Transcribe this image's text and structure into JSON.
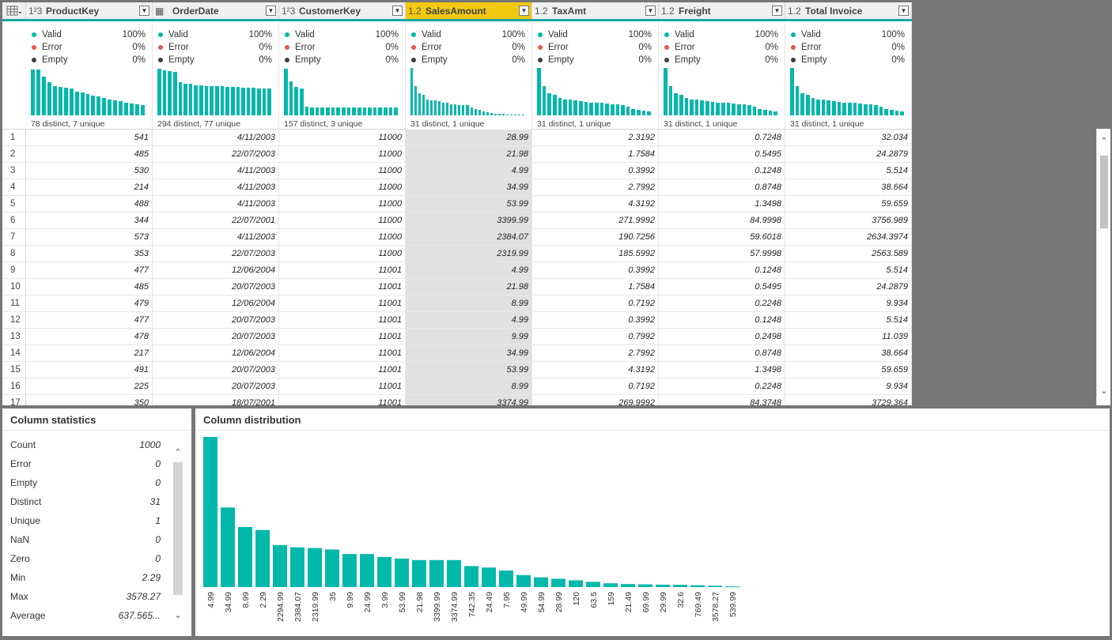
{
  "columns": [
    {
      "type": "1²3",
      "name": "ProductKey",
      "valid": "100%",
      "error": "0%",
      "empty": "0%",
      "distinct_text": "78 distinct, 7 unique",
      "profile": [
        0.97,
        0.97,
        0.82,
        0.7,
        0.62,
        0.6,
        0.58,
        0.56,
        0.5,
        0.48,
        0.45,
        0.42,
        0.4,
        0.36,
        0.34,
        0.32,
        0.3,
        0.27,
        0.25,
        0.23,
        0.22
      ],
      "selected": false
    },
    {
      "type": "▦",
      "name": "OrderDate",
      "valid": "100%",
      "error": "0%",
      "empty": "0%",
      "distinct_text": "294 distinct, 77 unique",
      "profile": [
        0.98,
        0.95,
        0.93,
        0.92,
        0.7,
        0.66,
        0.66,
        0.64,
        0.64,
        0.62,
        0.62,
        0.62,
        0.62,
        0.6,
        0.6,
        0.6,
        0.58,
        0.58,
        0.58,
        0.56,
        0.56,
        0.56
      ],
      "selected": false
    },
    {
      "type": "1²3",
      "name": "CustomerKey",
      "valid": "100%",
      "error": "0%",
      "empty": "0%",
      "distinct_text": "157 distinct, 3 unique",
      "profile": [
        0.98,
        0.72,
        0.6,
        0.56,
        0.18,
        0.16,
        0.16,
        0.16,
        0.16,
        0.16,
        0.16,
        0.16,
        0.16,
        0.16,
        0.16,
        0.16,
        0.16,
        0.16,
        0.16,
        0.16,
        0.16,
        0.16
      ],
      "selected": false
    },
    {
      "type": "1.2",
      "name": "SalesAmount",
      "valid": "100%",
      "error": "0%",
      "empty": "0%",
      "distinct_text": "31 distinct, 1 unique",
      "profile": [
        1.0,
        0.62,
        0.47,
        0.44,
        0.34,
        0.32,
        0.31,
        0.3,
        0.27,
        0.27,
        0.24,
        0.23,
        0.22,
        0.22,
        0.22,
        0.16,
        0.14,
        0.12,
        0.09,
        0.06,
        0.05,
        0.04,
        0.03,
        0.03,
        0.02,
        0.02,
        0.02,
        0.02,
        0.01
      ],
      "selected": true
    },
    {
      "type": "1.2",
      "name": "TaxAmt",
      "valid": "100%",
      "error": "0%",
      "empty": "0%",
      "distinct_text": "31 distinct, 1 unique",
      "profile": [
        1.0,
        0.62,
        0.47,
        0.44,
        0.36,
        0.34,
        0.33,
        0.32,
        0.3,
        0.29,
        0.27,
        0.26,
        0.26,
        0.25,
        0.24,
        0.23,
        0.22,
        0.18,
        0.14,
        0.12,
        0.1,
        0.08
      ],
      "selected": false
    },
    {
      "type": "1.2",
      "name": "Freight",
      "valid": "100%",
      "error": "0%",
      "empty": "0%",
      "distinct_text": "31 distinct, 1 unique",
      "profile": [
        1.0,
        0.62,
        0.47,
        0.44,
        0.36,
        0.34,
        0.33,
        0.32,
        0.3,
        0.29,
        0.27,
        0.26,
        0.26,
        0.25,
        0.24,
        0.23,
        0.22,
        0.18,
        0.14,
        0.12,
        0.1,
        0.08
      ],
      "selected": false
    },
    {
      "type": "1.2",
      "name": "Total Invoice",
      "valid": "100%",
      "error": "0%",
      "empty": "0%",
      "distinct_text": "31 distinct, 1 unique",
      "profile": [
        1.0,
        0.62,
        0.47,
        0.44,
        0.36,
        0.34,
        0.33,
        0.32,
        0.3,
        0.29,
        0.27,
        0.26,
        0.26,
        0.25,
        0.24,
        0.23,
        0.22,
        0.18,
        0.14,
        0.12,
        0.1,
        0.08
      ],
      "selected": false
    }
  ],
  "quality_labels": {
    "valid": "Valid",
    "error": "Error",
    "empty": "Empty"
  },
  "colors": {
    "accent": "#01b8aa",
    "valid_dot": "#01b8aa",
    "error_dot": "#e8584f",
    "empty_dot": "#404040",
    "selected_header": "#f2c811"
  },
  "rows": [
    [
      "1",
      "541",
      "4/11/2003",
      "11000",
      "28.99",
      "2.3192",
      "0.7248",
      "32.034"
    ],
    [
      "2",
      "485",
      "22/07/2003",
      "11000",
      "21.98",
      "1.7584",
      "0.5495",
      "24.2879"
    ],
    [
      "3",
      "530",
      "4/11/2003",
      "11000",
      "4.99",
      "0.3992",
      "0.1248",
      "5.514"
    ],
    [
      "4",
      "214",
      "4/11/2003",
      "11000",
      "34.99",
      "2.7992",
      "0.8748",
      "38.664"
    ],
    [
      "5",
      "488",
      "4/11/2003",
      "11000",
      "53.99",
      "4.3192",
      "1.3498",
      "59.659"
    ],
    [
      "6",
      "344",
      "22/07/2001",
      "11000",
      "3399.99",
      "271.9992",
      "84.9998",
      "3756.989"
    ],
    [
      "7",
      "573",
      "4/11/2003",
      "11000",
      "2384.07",
      "190.7256",
      "59.6018",
      "2634.3974"
    ],
    [
      "8",
      "353",
      "22/07/2003",
      "11000",
      "2319.99",
      "185.5992",
      "57.9998",
      "2563.589"
    ],
    [
      "9",
      "477",
      "12/06/2004",
      "11001",
      "4.99",
      "0.3992",
      "0.1248",
      "5.514"
    ],
    [
      "10",
      "485",
      "20/07/2003",
      "11001",
      "21.98",
      "1.7584",
      "0.5495",
      "24.2879"
    ],
    [
      "11",
      "479",
      "12/06/2004",
      "11001",
      "8.99",
      "0.7192",
      "0.2248",
      "9.934"
    ],
    [
      "12",
      "477",
      "20/07/2003",
      "11001",
      "4.99",
      "0.3992",
      "0.1248",
      "5.514"
    ],
    [
      "13",
      "478",
      "20/07/2003",
      "11001",
      "9.99",
      "0.7992",
      "0.2498",
      "11.039"
    ],
    [
      "14",
      "217",
      "12/06/2004",
      "11001",
      "34.99",
      "2.7992",
      "0.8748",
      "38.664"
    ],
    [
      "15",
      "491",
      "20/07/2003",
      "11001",
      "53.99",
      "4.3192",
      "1.3498",
      "59.659"
    ],
    [
      "16",
      "225",
      "20/07/2003",
      "11001",
      "8.99",
      "0.7192",
      "0.2248",
      "9.934"
    ],
    [
      "17",
      "350",
      "18/07/2001",
      "11001",
      "3374.99",
      "269.9992",
      "84.3748",
      "3729.364"
    ]
  ],
  "stats": {
    "title": "Column statistics",
    "items": [
      {
        "label": "Count",
        "value": "1000"
      },
      {
        "label": "Error",
        "value": "0"
      },
      {
        "label": "Empty",
        "value": "0"
      },
      {
        "label": "Distinct",
        "value": "31"
      },
      {
        "label": "Unique",
        "value": "1"
      },
      {
        "label": "NaN",
        "value": "0"
      },
      {
        "label": "Zero",
        "value": "0"
      },
      {
        "label": "Min",
        "value": "2.29"
      },
      {
        "label": "Max",
        "value": "3578.27"
      },
      {
        "label": "Average",
        "value": "637.565..."
      }
    ]
  },
  "distribution": {
    "title": "Column distribution"
  },
  "chart_data": {
    "type": "bar",
    "title": "Column distribution",
    "categories": [
      "4.99",
      "34.99",
      "8.99",
      "2.29",
      "2294.99",
      "2384.07",
      "2319.99",
      "35",
      "9.99",
      "24.99",
      "3.99",
      "53.99",
      "21.98",
      "3399.99",
      "3374.99",
      "742.35",
      "24.49",
      "7.95",
      "49.99",
      "54.99",
      "28.99",
      "120",
      "63.5",
      "159",
      "21.49",
      "69.99",
      "29.99",
      "32.6",
      "769.49",
      "3578.27",
      "539.99"
    ],
    "values": [
      100,
      53,
      40,
      38,
      28,
      26.5,
      26,
      25,
      22,
      22,
      20,
      19,
      18,
      18,
      18,
      14,
      13,
      11,
      8,
      6.5,
      5.5,
      4.5,
      3.5,
      2.5,
      2,
      1.8,
      1.6,
      1.5,
      1.2,
      0.9,
      0.4
    ],
    "xlabel": "",
    "ylabel": "",
    "grid": false,
    "legend": "none"
  }
}
